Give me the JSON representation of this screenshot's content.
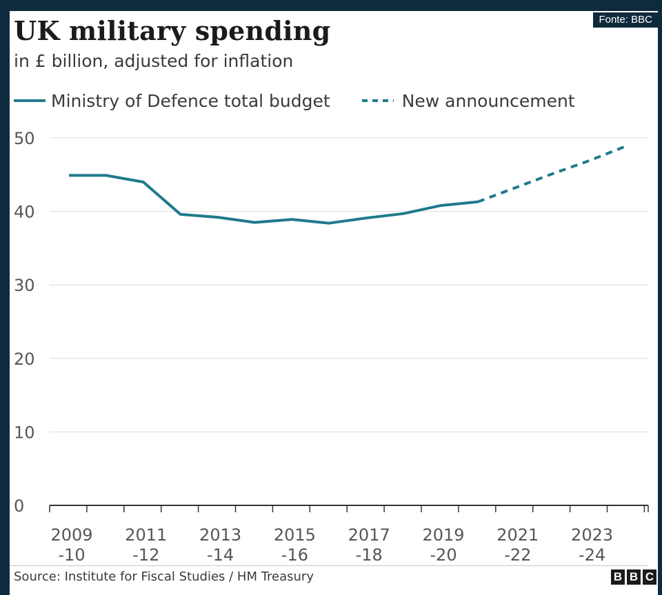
{
  "badge": {
    "text": "Fonte: BBC"
  },
  "chart_data": {
    "type": "line",
    "title": "UK military spending",
    "subtitle": "in £ billion, adjusted for inflation",
    "categories": [
      "2009-10",
      "2010-11",
      "2011-12",
      "2012-13",
      "2013-14",
      "2014-15",
      "2015-16",
      "2016-17",
      "2017-18",
      "2018-19",
      "2019-20",
      "2020-21",
      "2021-22",
      "2022-23",
      "2023-24",
      "2024-25"
    ],
    "series": [
      {
        "name": "Ministry of Defence total budget",
        "style": "solid",
        "color": "#1f7a8c",
        "values": [
          44.9,
          44.9,
          44.0,
          39.6,
          39.2,
          38.5,
          38.9,
          38.4,
          39.1,
          39.7,
          40.8,
          41.3,
          null,
          null,
          null,
          null
        ]
      },
      {
        "name": "New announcement",
        "style": "dashed",
        "color": "#1f7a8c",
        "values": [
          null,
          null,
          null,
          null,
          null,
          null,
          null,
          null,
          null,
          null,
          null,
          41.3,
          43.2,
          45.1,
          46.9,
          48.9
        ]
      }
    ],
    "ylim": [
      0,
      50
    ],
    "yticks": [
      "0",
      "10",
      "20",
      "30",
      "40",
      "50"
    ],
    "xtick_labels": [
      {
        "index": 0,
        "line1": "2009",
        "line2": "-10"
      },
      {
        "index": 2,
        "line1": "2011",
        "line2": "-12"
      },
      {
        "index": 4,
        "line1": "2013",
        "line2": "-14"
      },
      {
        "index": 6,
        "line1": "2015",
        "line2": "-16"
      },
      {
        "index": 8,
        "line1": "2017",
        "line2": "-18"
      },
      {
        "index": 10,
        "line1": "2019",
        "line2": "-20"
      },
      {
        "index": 12,
        "line1": "2021",
        "line2": "-22"
      },
      {
        "index": 14,
        "line1": "2023",
        "line2": "-24"
      }
    ],
    "grid": true,
    "legend_position": "top-left"
  },
  "footer": {
    "source": "Source: Institute for Fiscal Studies / HM Treasury",
    "logo_letters": [
      "B",
      "B",
      "C"
    ]
  }
}
